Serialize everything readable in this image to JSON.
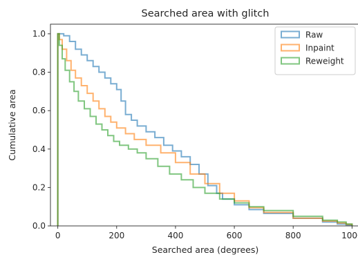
{
  "chart_data": {
    "type": "line",
    "step": true,
    "title": "Searched area with glitch",
    "xlabel": "Searched area (degrees)",
    "ylabel": "Cumulative area",
    "xlim": [
      -25,
      1025
    ],
    "ylim": [
      0,
      1.05
    ],
    "xticks": [
      0,
      200,
      400,
      600,
      800,
      1000
    ],
    "yticks": [
      0.0,
      0.2,
      0.4,
      0.6,
      0.8,
      1.0
    ],
    "xtick_labels": [
      "0",
      "200",
      "400",
      "600",
      "800",
      "1000"
    ],
    "ytick_labels": [
      "0.0",
      "0.2",
      "0.4",
      "0.6",
      "0.8",
      "1.0"
    ],
    "grid": false,
    "legend_position": "top-right",
    "series": [
      {
        "name": "Raw",
        "color": "#1f77b4",
        "x": [
          0,
          0,
          5,
          20,
          40,
          60,
          80,
          100,
          120,
          140,
          160,
          180,
          200,
          215,
          230,
          250,
          270,
          300,
          330,
          360,
          390,
          420,
          450,
          480,
          510,
          540,
          560,
          600,
          650,
          700,
          800,
          900,
          950,
          980,
          1000
        ],
        "y": [
          0,
          1.0,
          1.0,
          0.99,
          0.96,
          0.92,
          0.89,
          0.86,
          0.83,
          0.8,
          0.77,
          0.74,
          0.71,
          0.65,
          0.58,
          0.55,
          0.52,
          0.49,
          0.46,
          0.42,
          0.39,
          0.36,
          0.32,
          0.27,
          0.21,
          0.17,
          0.14,
          0.11,
          0.085,
          0.065,
          0.04,
          0.02,
          0.01,
          0.005,
          0.0
        ]
      },
      {
        "name": "Inpaint",
        "color": "#ff7f0e",
        "x": [
          0,
          0,
          5,
          15,
          30,
          45,
          60,
          80,
          100,
          120,
          140,
          160,
          180,
          200,
          230,
          260,
          300,
          350,
          400,
          450,
          500,
          550,
          600,
          650,
          700,
          800,
          900,
          950,
          980,
          1000
        ],
        "y": [
          0,
          1.0,
          0.97,
          0.92,
          0.86,
          0.81,
          0.77,
          0.73,
          0.69,
          0.65,
          0.61,
          0.57,
          0.54,
          0.51,
          0.48,
          0.45,
          0.42,
          0.38,
          0.33,
          0.27,
          0.22,
          0.17,
          0.13,
          0.095,
          0.07,
          0.04,
          0.025,
          0.015,
          0.008,
          0.0
        ]
      },
      {
        "name": "Reweight",
        "color": "#2ca02c",
        "x": [
          0,
          0,
          5,
          15,
          25,
          40,
          55,
          70,
          90,
          110,
          130,
          150,
          170,
          190,
          210,
          240,
          270,
          300,
          340,
          380,
          420,
          460,
          500,
          550,
          600,
          650,
          700,
          800,
          900,
          950,
          980,
          1000
        ],
        "y": [
          0,
          1.0,
          0.94,
          0.87,
          0.81,
          0.75,
          0.7,
          0.65,
          0.61,
          0.57,
          0.53,
          0.5,
          0.47,
          0.44,
          0.42,
          0.4,
          0.38,
          0.35,
          0.31,
          0.27,
          0.24,
          0.2,
          0.17,
          0.14,
          0.12,
          0.1,
          0.08,
          0.05,
          0.03,
          0.02,
          0.01,
          0.0
        ]
      }
    ]
  }
}
